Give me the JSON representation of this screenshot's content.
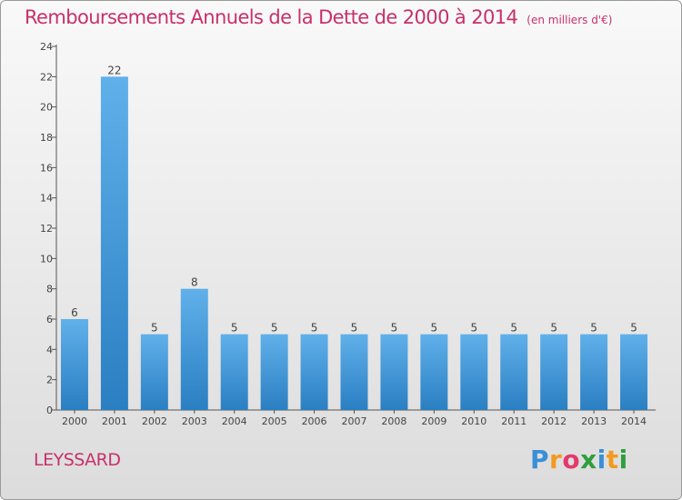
{
  "header": {
    "title": "Remboursements Annuels de la Dette de 2000 à 2014",
    "unit": "(en milliers d'€)"
  },
  "commune": "LEYSSARD",
  "brand": {
    "letters": [
      "P",
      "r",
      "o",
      "x",
      "i",
      "t",
      "i"
    ],
    "colors": [
      "#3a8fd6",
      "#f29a1f",
      "#e23a6b",
      "#2f9e3f",
      "#3a8fd6",
      "#f29a1f",
      "#2f9e3f"
    ]
  },
  "colors": {
    "bar_top": "#60b0ea",
    "bar_bottom": "#2a7fc2",
    "text": "#c8306a"
  },
  "chart_data": {
    "type": "bar",
    "title": "Remboursements Annuels de la Dette de 2000 à 2014",
    "categories": [
      "2000",
      "2001",
      "2002",
      "2003",
      "2004",
      "2005",
      "2006",
      "2007",
      "2008",
      "2009",
      "2010",
      "2011",
      "2012",
      "2013",
      "2014"
    ],
    "values": [
      6,
      22,
      5,
      8,
      5,
      5,
      5,
      5,
      5,
      5,
      5,
      5,
      5,
      5,
      5
    ],
    "ylim": [
      0,
      24
    ],
    "yticks": [
      0,
      2,
      4,
      6,
      8,
      10,
      12,
      14,
      16,
      18,
      20,
      22,
      24
    ],
    "grid": false,
    "data_labels": [
      "6",
      "22",
      "5",
      "8",
      "5",
      "5",
      "5",
      "5",
      "5",
      "5",
      "5",
      "5",
      "5",
      "5",
      "5"
    ]
  }
}
